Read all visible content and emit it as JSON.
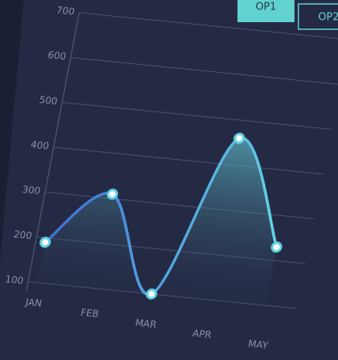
{
  "buttons": [
    "OP1",
    "OP2"
  ],
  "chart_data": {
    "type": "line",
    "categories": [
      "JAN",
      "FEB",
      "MAR",
      "APR",
      "MAY"
    ],
    "values": [
      190,
      310,
      100,
      460,
      230
    ],
    "color": "#5fd0e0",
    "ylim": [
      100,
      700
    ],
    "yticks": [
      100,
      200,
      300,
      400,
      500,
      600,
      700
    ],
    "grid": true
  }
}
